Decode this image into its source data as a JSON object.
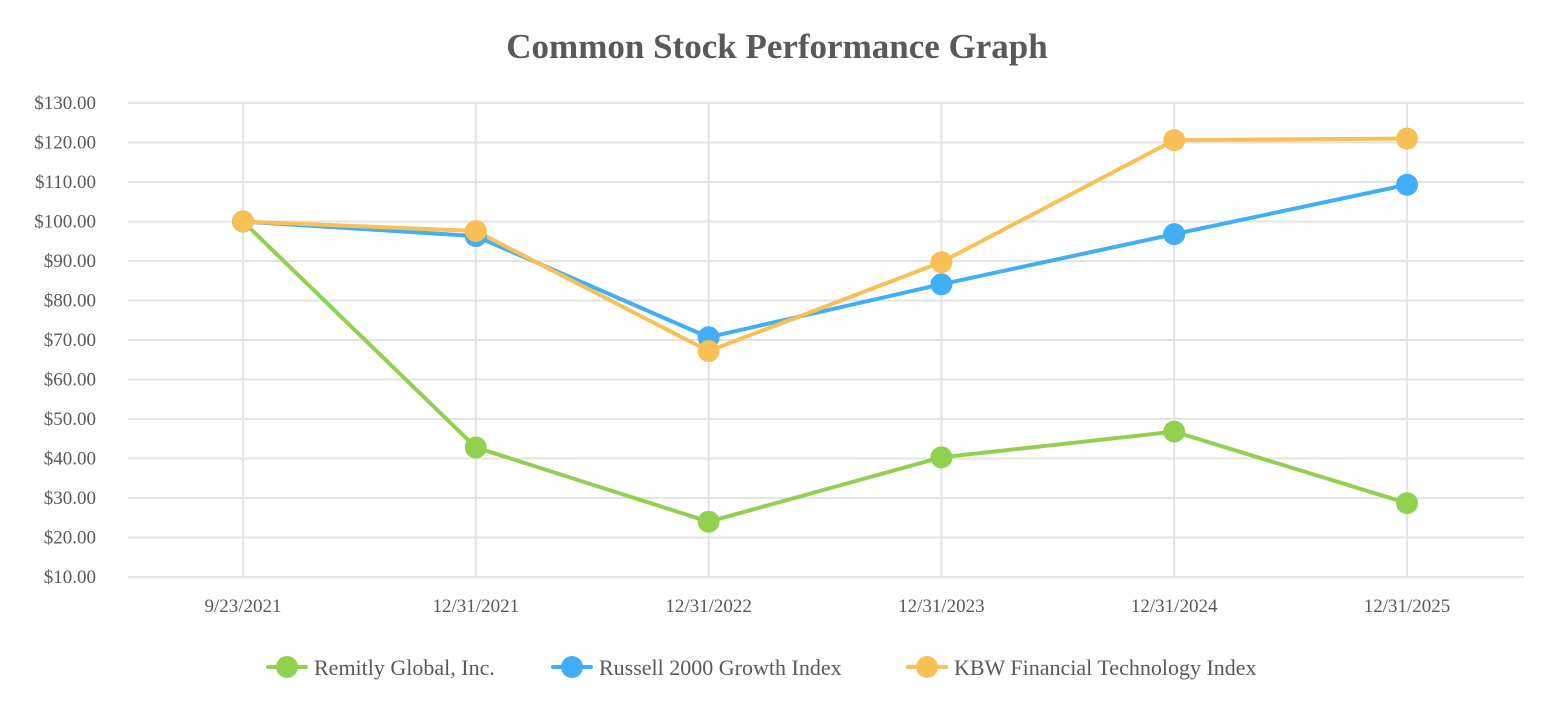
{
  "chart_data": {
    "type": "line",
    "title": "Common Stock Performance Graph",
    "xlabel": "",
    "ylabel": "",
    "categories": [
      "9/23/2021",
      "12/31/2021",
      "12/31/2022",
      "12/31/2023",
      "12/31/2024",
      "12/31/2025"
    ],
    "y_ticks": [
      10,
      20,
      30,
      40,
      50,
      60,
      70,
      80,
      90,
      100,
      110,
      120,
      130
    ],
    "y_tick_labels": [
      "$10.00",
      "$20.00",
      "$30.00",
      "$40.00",
      "$50.00",
      "$60.00",
      "$70.00",
      "$80.00",
      "$90.00",
      "$100.00",
      "$110.00",
      "$120.00",
      "$130.00"
    ],
    "ylim": [
      10,
      130
    ],
    "grid": true,
    "legend_position": "bottom",
    "series": [
      {
        "name": "Remitly Global, Inc.",
        "color": "#92d050",
        "values": [
          100.0,
          42.8,
          24.0,
          40.3,
          46.8,
          28.7
        ]
      },
      {
        "name": "Russell 2000 Growth Index",
        "color": "#41aef6",
        "values": [
          100.0,
          96.3,
          70.7,
          84.1,
          96.8,
          109.3
        ]
      },
      {
        "name": "KBW Financial Technology Index",
        "color": "#f8c055",
        "values": [
          100.0,
          97.6,
          67.2,
          89.7,
          120.6,
          121.0
        ]
      }
    ]
  }
}
